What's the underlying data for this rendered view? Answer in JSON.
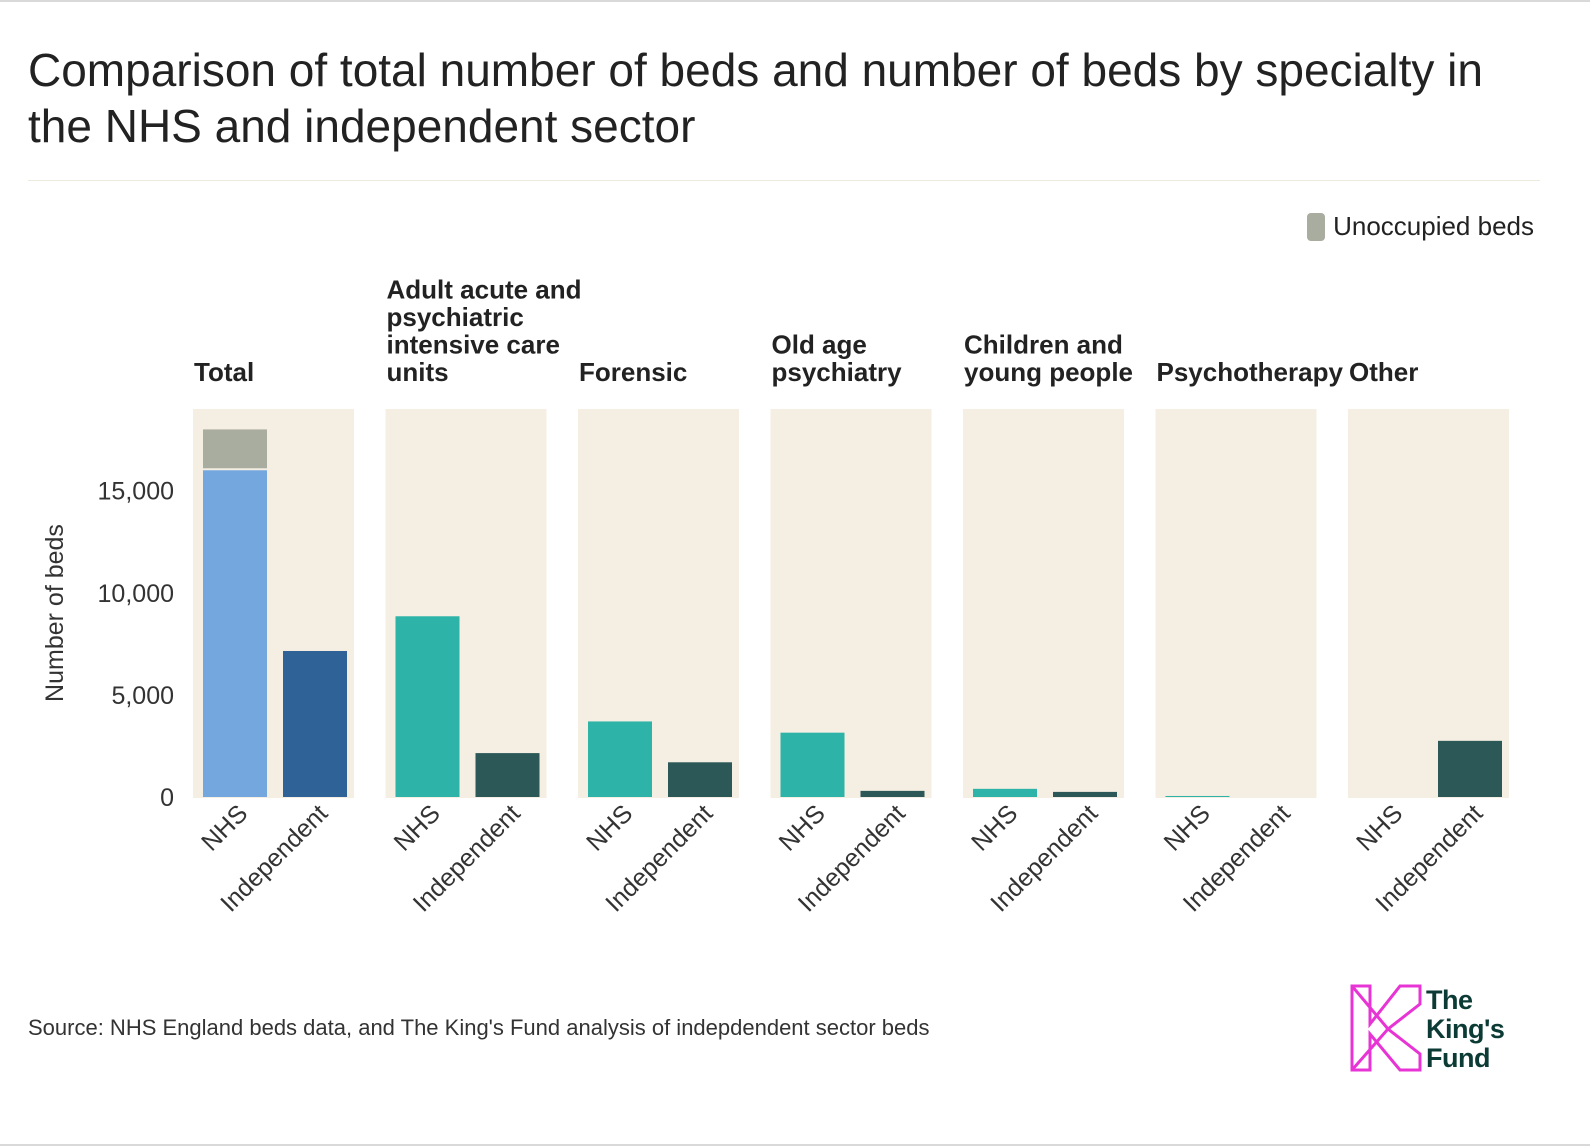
{
  "title": "Comparison of total number of beds and number of beds by specialty in the NHS and independent sector",
  "legend": {
    "label": "Unoccupied beds",
    "color": "#a9ad9f"
  },
  "source": "Source: NHS England beds data, and The King's Fund analysis of indepdendent sector beds",
  "logo": {
    "text_line1": "The",
    "text_line2": "King's",
    "text_line3": "Fund",
    "brand_color": "#e834d4",
    "text_color": "#0c3a34"
  },
  "colors": {
    "panel_bg": "#f5eee2",
    "total_nhs": "#74a7de",
    "total_independent": "#2f6398",
    "unoccupied": "#a9ad9f",
    "specialty_nhs": "#2db3a8",
    "specialty_independent": "#2c5958"
  },
  "chart_data": {
    "type": "bar",
    "stacked": true,
    "ylabel": "Number of beds",
    "ylim": [
      0,
      19000
    ],
    "yticks": [
      0,
      5000,
      10000,
      15000
    ],
    "ytick_labels": [
      "0",
      "5,000",
      "10,000",
      "15,000"
    ],
    "grid": false,
    "legend_position": "top-right",
    "bar_categories": [
      "NHS",
      "Independent"
    ],
    "panels": [
      {
        "name": "Total",
        "title_lines": [
          "Total"
        ],
        "occupied": [
          16000,
          7150
        ],
        "unoccupied": [
          2000,
          0
        ]
      },
      {
        "name": "Adult acute and psychiatric intensive care units",
        "title_lines": [
          "Adult acute and",
          "psychiatric",
          "intensive care",
          "units"
        ],
        "occupied": [
          8850,
          2150
        ],
        "unoccupied": [
          0,
          0
        ]
      },
      {
        "name": "Forensic",
        "title_lines": [
          "Forensic"
        ],
        "occupied": [
          3700,
          1700
        ],
        "unoccupied": [
          0,
          0
        ]
      },
      {
        "name": "Old age psychiatry",
        "title_lines": [
          "Old age",
          "psychiatry"
        ],
        "occupied": [
          3150,
          300
        ],
        "unoccupied": [
          0,
          0
        ]
      },
      {
        "name": "Children and young people",
        "title_lines": [
          "Children and",
          "young people"
        ],
        "occupied": [
          400,
          250
        ],
        "unoccupied": [
          0,
          0
        ]
      },
      {
        "name": "Psychotherapy",
        "title_lines": [
          "Psychotherapy"
        ],
        "occupied": [
          50,
          0
        ],
        "unoccupied": [
          0,
          0
        ]
      },
      {
        "name": "Other",
        "title_lines": [
          "Other"
        ],
        "occupied": [
          0,
          2750
        ],
        "unoccupied": [
          0,
          0
        ]
      }
    ]
  }
}
